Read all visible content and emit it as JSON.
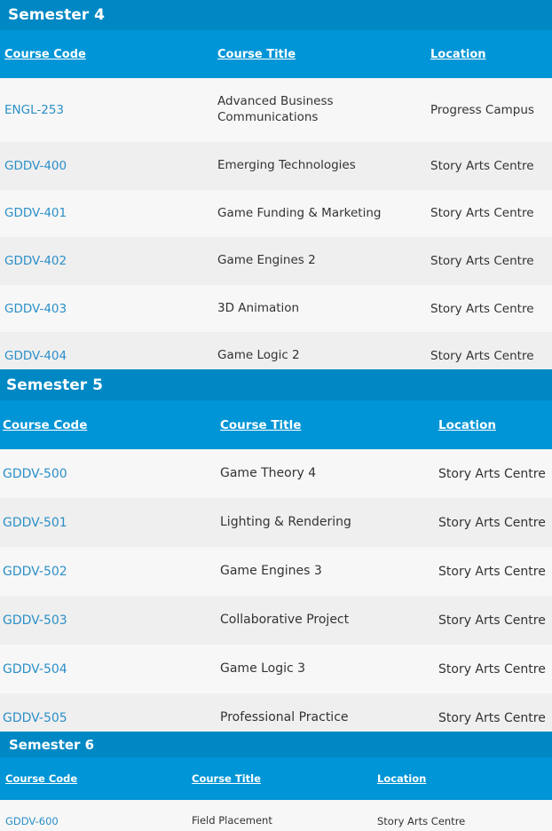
{
  "headers": {
    "code": "Course Code",
    "title": "Course Title",
    "location": "Location"
  },
  "semesters": [
    {
      "title": "Semester 4",
      "courses": [
        {
          "code": "ENGL-253",
          "title": "Advanced Business Communications",
          "location": "Progress Campus"
        },
        {
          "code": "GDDV-400",
          "title": "Emerging Technologies",
          "location": "Story Arts Centre"
        },
        {
          "code": "GDDV-401",
          "title": "Game Funding & Marketing",
          "location": "Story Arts Centre"
        },
        {
          "code": "GDDV-402",
          "title": "Game Engines 2",
          "location": "Story Arts Centre"
        },
        {
          "code": "GDDV-403",
          "title": "3D Animation",
          "location": "Story Arts Centre"
        },
        {
          "code": "GDDV-404",
          "title": "Game Logic 2",
          "location": "Story Arts Centre"
        }
      ]
    },
    {
      "title": "Semester 5",
      "courses": [
        {
          "code": "GDDV-500",
          "title": "Game Theory 4",
          "location": "Story Arts Centre"
        },
        {
          "code": "GDDV-501",
          "title": "Lighting & Rendering",
          "location": "Story Arts Centre"
        },
        {
          "code": "GDDV-502",
          "title": "Game Engines 3",
          "location": "Story Arts Centre"
        },
        {
          "code": "GDDV-503",
          "title": "Collaborative Project",
          "location": "Story Arts Centre"
        },
        {
          "code": "GDDV-504",
          "title": "Game Logic 3",
          "location": "Story Arts Centre"
        },
        {
          "code": "GDDV-505",
          "title": "Professional Practice",
          "location": "Story Arts Centre"
        }
      ]
    },
    {
      "title": "Semester 6",
      "courses": [
        {
          "code": "GDDV-600",
          "title": "Field Placement",
          "location": "Story Arts Centre"
        }
      ]
    }
  ],
  "colors": {
    "semester_bar": "#0088c4",
    "header_bar": "#0095d6",
    "link": "#2b8fc7",
    "row_light": "#f7f7f7",
    "row_dark": "#efefef"
  }
}
